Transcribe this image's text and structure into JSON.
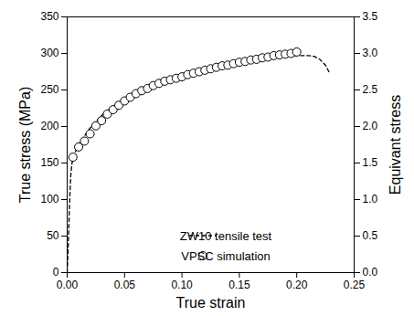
{
  "chart_data": {
    "type": "line",
    "x_label": "True strain",
    "y_label": "True stress (MPa)",
    "y2_label": "Equivant stress",
    "xlim": [
      0,
      0.25
    ],
    "xticks": [
      {
        "value": 0,
        "label": "0.00"
      },
      {
        "value": 0.05,
        "label": "0.05"
      },
      {
        "value": 0.1,
        "label": "0.10"
      },
      {
        "value": 0.15,
        "label": "0.15"
      },
      {
        "value": 0.2,
        "label": "0.20"
      },
      {
        "value": 0.25,
        "label": "0.25"
      }
    ],
    "ylim": [
      0,
      350
    ],
    "yticks": [
      0,
      50,
      100,
      150,
      200,
      250,
      300,
      350
    ],
    "y2lim": [
      0,
      3.5
    ],
    "y2ticks": [
      {
        "value": 0,
        "label": "0.0"
      },
      {
        "value": 0.5,
        "label": "0.5"
      },
      {
        "value": 1,
        "label": "1.0"
      },
      {
        "value": 1.5,
        "label": "1.5"
      },
      {
        "value": 2,
        "label": "2.0"
      },
      {
        "value": 2.5,
        "label": "2.5"
      },
      {
        "value": 3,
        "label": "3.0"
      },
      {
        "value": 3.5,
        "label": "3.5"
      }
    ],
    "legend": "lower right",
    "series": [
      {
        "name": "ZW10 tensile test",
        "type": "line",
        "color": "#000000",
        "line_style": "dashed",
        "x": [
          0,
          0.001,
          0.002,
          0.003,
          0.004,
          0.005,
          0.007,
          0.01,
          0.015,
          0.02,
          0.03,
          0.04,
          0.05,
          0.06,
          0.08,
          0.1,
          0.12,
          0.14,
          0.16,
          0.18,
          0.19,
          0.2,
          0.21,
          0.215,
          0.22,
          0.225,
          0.228
        ],
        "values": [
          0,
          40,
          90,
          130,
          148,
          155,
          165,
          175,
          187,
          198,
          215,
          228,
          238,
          247,
          259,
          268,
          276,
          283,
          289,
          294,
          296,
          297,
          297,
          296,
          292,
          284,
          275
        ]
      },
      {
        "name": "VPSC simulation",
        "type": "scatter",
        "color": "#000000",
        "marker": "circle",
        "axis": "y2",
        "x": [
          0.005,
          0.01,
          0.015,
          0.02,
          0.025,
          0.03,
          0.035,
          0.04,
          0.045,
          0.05,
          0.055,
          0.06,
          0.065,
          0.07,
          0.075,
          0.08,
          0.085,
          0.09,
          0.095,
          0.1,
          0.105,
          0.11,
          0.115,
          0.12,
          0.125,
          0.13,
          0.135,
          0.14,
          0.145,
          0.15,
          0.155,
          0.16,
          0.165,
          0.17,
          0.175,
          0.18,
          0.185,
          0.19,
          0.195,
          0.2
        ],
        "values": [
          1.58,
          1.72,
          1.8,
          1.9,
          2.01,
          2.08,
          2.17,
          2.23,
          2.29,
          2.35,
          2.4,
          2.45,
          2.49,
          2.52,
          2.56,
          2.59,
          2.62,
          2.64,
          2.66,
          2.68,
          2.71,
          2.73,
          2.75,
          2.77,
          2.79,
          2.81,
          2.83,
          2.84,
          2.86,
          2.88,
          2.89,
          2.91,
          2.92,
          2.94,
          2.95,
          2.97,
          2.98,
          2.99,
          3.0,
          3.02
        ]
      }
    ]
  }
}
